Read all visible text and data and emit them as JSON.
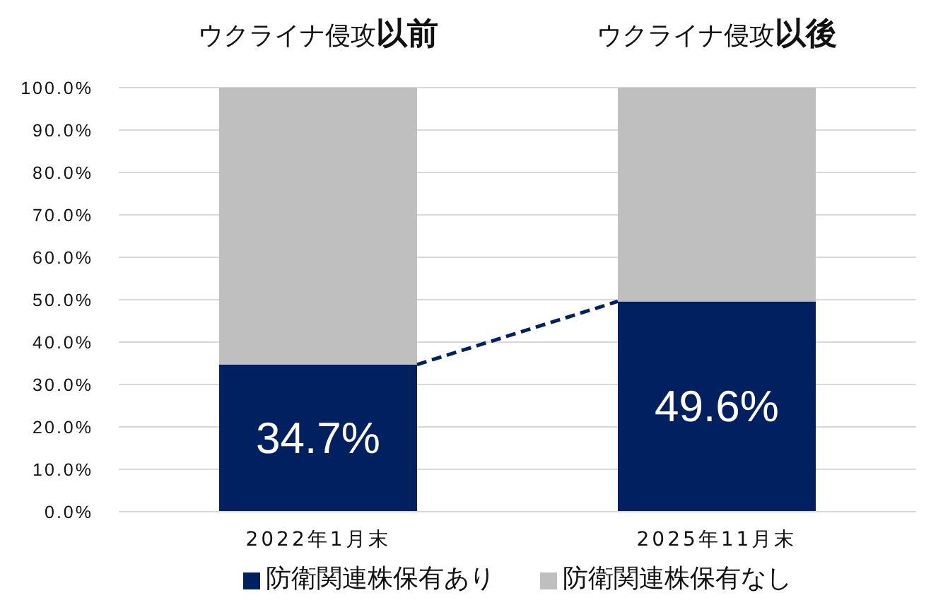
{
  "chart_data": {
    "type": "bar",
    "stacked": true,
    "categories": [
      "2022年1月末",
      "2025年11月末"
    ],
    "series": [
      {
        "name": "防衛関連株保有あり",
        "color": "#002060",
        "values": [
          34.7,
          49.6
        ],
        "value_labels": [
          "34.7%",
          "49.6%"
        ]
      },
      {
        "name": "防衛関連株保有なし",
        "color": "#bfbfbf",
        "values": [
          65.3,
          50.4
        ]
      }
    ],
    "ylim": [
      0,
      100
    ],
    "yticks": [
      {
        "value": 0,
        "label": "0.0%"
      },
      {
        "value": 10,
        "label": "10.0%"
      },
      {
        "value": 20,
        "label": "20.0%"
      },
      {
        "value": 30,
        "label": "30.0%"
      },
      {
        "value": 40,
        "label": "40.0%"
      },
      {
        "value": 50,
        "label": "50.0%"
      },
      {
        "value": 60,
        "label": "60.0%"
      },
      {
        "value": 70,
        "label": "70.0%"
      },
      {
        "value": 80,
        "label": "80.0%"
      },
      {
        "value": 90,
        "label": "90.0%"
      },
      {
        "value": 100,
        "label": "100.0%"
      }
    ],
    "annotations": [
      {
        "text": "ウクライナ侵攻以前",
        "x": "2022年1月末",
        "y": 100
      },
      {
        "text": "ウクライナ侵攻以後",
        "x": "2025年11月末",
        "y": 100
      }
    ],
    "grid": "y",
    "legend": "bottom"
  }
}
